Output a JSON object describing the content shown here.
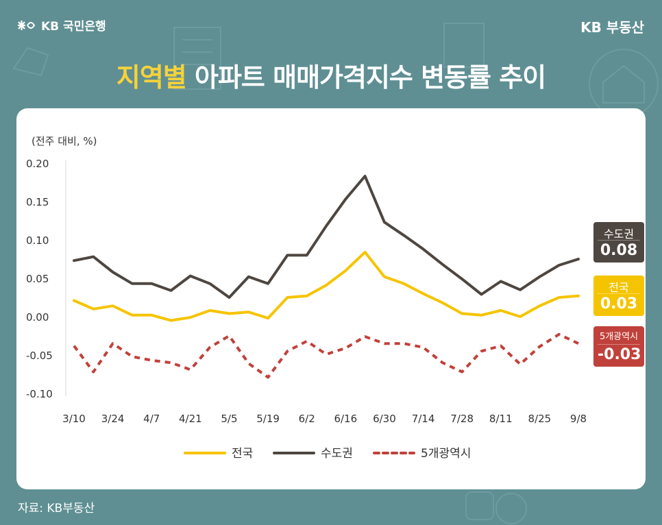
{
  "header": {
    "bank_logo_text": "KB 국민은행",
    "brand": "KB 부동산",
    "title_highlight": "지역별",
    "title_rest": " 아파트 매매가격지수 변동률 추이"
  },
  "footer": {
    "source": "자료: KB부동산"
  },
  "colors": {
    "background": "#5f8f93",
    "nationwide": "#f5c400",
    "capital": "#4e4640",
    "metro5": "#c0413b",
    "highlight": "#f6d23a"
  },
  "chart_data": {
    "type": "line",
    "ylabel": "(전주 대비, %)",
    "ylim": [
      -0.1,
      0.2
    ],
    "yticks": [
      0.2,
      0.15,
      0.1,
      0.05,
      0.0,
      -0.05,
      -0.1
    ],
    "ytick_labels": [
      "0.20",
      "0.15",
      "0.10",
      "0.05",
      "0.00",
      "-0.05",
      "-0.10"
    ],
    "x_labels": [
      "3/10",
      "3/24",
      "4/7",
      "4/21",
      "5/5",
      "5/19",
      "6/2",
      "6/16",
      "6/30",
      "7/14",
      "7/28",
      "8/11",
      "8/25",
      "9/8"
    ],
    "num_points": 27,
    "series": [
      {
        "name": "전국",
        "color": "#f5c400",
        "style": "solid",
        "values": [
          0.021,
          0.01,
          0.014,
          0.002,
          0.002,
          -0.005,
          -0.001,
          0.008,
          0.004,
          0.006,
          -0.002,
          0.025,
          0.027,
          0.041,
          0.06,
          0.084,
          0.052,
          0.043,
          0.03,
          0.018,
          0.004,
          0.002,
          0.008,
          0.0,
          0.014,
          0.025,
          0.027
        ],
        "end_label": "0.03"
      },
      {
        "name": "수도권",
        "color": "#4e4640",
        "style": "solid",
        "values": [
          0.073,
          0.078,
          0.058,
          0.043,
          0.043,
          0.034,
          0.053,
          0.043,
          0.025,
          0.052,
          0.043,
          0.08,
          0.08,
          0.118,
          0.153,
          0.183,
          0.123,
          0.106,
          0.088,
          0.068,
          0.049,
          0.029,
          0.046,
          0.035,
          0.052,
          0.067,
          0.075
        ],
        "end_label": "0.08"
      },
      {
        "name": "5개광역시",
        "color": "#c0413b",
        "style": "dashed",
        "values": [
          -0.038,
          -0.072,
          -0.035,
          -0.052,
          -0.057,
          -0.06,
          -0.069,
          -0.04,
          -0.025,
          -0.061,
          -0.079,
          -0.045,
          -0.032,
          -0.049,
          -0.041,
          -0.026,
          -0.035,
          -0.035,
          -0.04,
          -0.06,
          -0.072,
          -0.045,
          -0.038,
          -0.062,
          -0.039,
          -0.023,
          -0.035
        ],
        "end_label": "-0.03"
      }
    ],
    "legend": [
      "전국",
      "수도권",
      "5개광역시"
    ],
    "legend_position": "bottom",
    "grid": false
  }
}
